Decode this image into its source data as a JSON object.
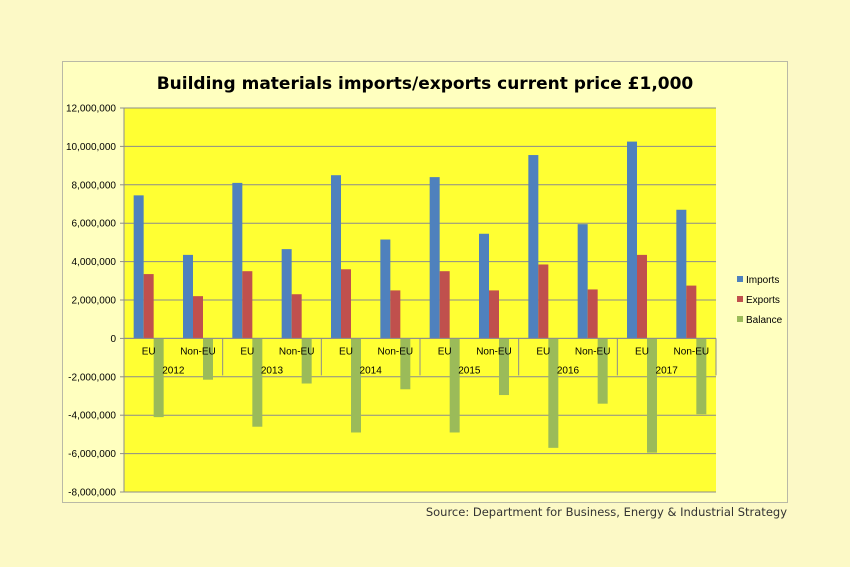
{
  "title": "Building materials imports/exports current price £1,000",
  "source": "Source: Department for Business, Energy & Industrial Strategy",
  "colors": {
    "page_background": "#fcf9c6",
    "plot_background": "#ffff33",
    "imports": "#4f81bd",
    "exports": "#c0504d",
    "balance": "#9bbb59"
  },
  "chart_data": {
    "type": "bar",
    "categories": [
      "EU",
      "Non-EU",
      "EU",
      "Non-EU",
      "EU",
      "Non-EU",
      "EU",
      "Non-EU",
      "EU",
      "Non-EU",
      "EU",
      "Non-EU"
    ],
    "groups": [
      "2012",
      "2013",
      "2014",
      "2015",
      "2016",
      "2017"
    ],
    "series": [
      {
        "name": "Imports",
        "values": [
          7450000,
          4350000,
          8100000,
          4650000,
          8500000,
          5150000,
          8400000,
          5450000,
          9550000,
          5950000,
          10250000,
          6700000
        ]
      },
      {
        "name": "Exports",
        "values": [
          3350000,
          2200000,
          3500000,
          2300000,
          3600000,
          2500000,
          3500000,
          2500000,
          3850000,
          2550000,
          4350000,
          2750000
        ]
      },
      {
        "name": "Balance",
        "values": [
          -4100000,
          -2150000,
          -4600000,
          -2350000,
          -4900000,
          -2650000,
          -4900000,
          -2950000,
          -5700000,
          -3400000,
          -5950000,
          -3950000
        ]
      }
    ],
    "ylim": [
      -8000000,
      12000000
    ],
    "yticks": [
      12000000,
      10000000,
      8000000,
      6000000,
      4000000,
      2000000,
      0,
      -2000000,
      -4000000,
      -6000000,
      -8000000
    ],
    "ytick_labels": [
      "12,000,000",
      "10,000,000",
      "8,000,000",
      "6,000,000",
      "4,000,000",
      "2,000,000",
      "0",
      "-2,000,000",
      "-4,000,000",
      "-6,000,000",
      "-8,000,000"
    ],
    "grid": true,
    "legend_position": "right"
  }
}
